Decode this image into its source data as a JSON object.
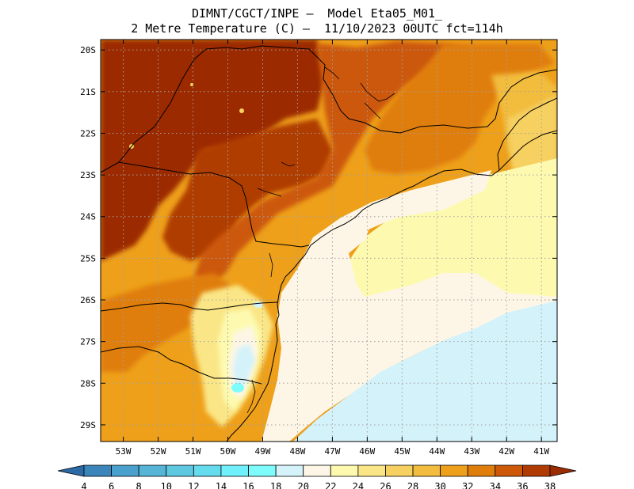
{
  "title": {
    "line1": "DIMNT/CGCT/INPE –  Model Eta05_M01_",
    "line2": "2 Metre Temperature (C) –  11/10/2023 00UTC fct=114h"
  },
  "axes": {
    "lat_labels": [
      "20S",
      "21S",
      "22S",
      "23S",
      "24S",
      "25S",
      "26S",
      "27S",
      "28S",
      "29S"
    ],
    "lon_labels": [
      "53W",
      "52W",
      "51W",
      "50W",
      "49W",
      "48W",
      "47W",
      "46W",
      "45W",
      "44W",
      "43W",
      "42W",
      "41W"
    ],
    "lat_range": [
      -29.4,
      -19.75
    ],
    "lon_range": [
      -53.65,
      -40.55
    ],
    "grid": true
  },
  "colorbar": {
    "labels": [
      "4",
      "6",
      "8",
      "10",
      "12",
      "14",
      "16",
      "18",
      "20",
      "22",
      "24",
      "26",
      "28",
      "30",
      "32",
      "34",
      "36",
      "38"
    ],
    "colors": [
      "#2c6aa6",
      "#3a86ba",
      "#4aa0cc",
      "#56b4d6",
      "#5ec8e0",
      "#65dcee",
      "#70f0fa",
      "#7efcfc",
      "#d4f2fa",
      "#fdf6e6",
      "#fdfab0",
      "#fae686",
      "#f6d060",
      "#f2bc3e",
      "#eea01a",
      "#e07e0c",
      "#cc5808",
      "#b03c04",
      "#9c2c04"
    ]
  },
  "regions": {
    "ocean_cool": "#d4f2fa",
    "ocean_mild": "#fdf6e6",
    "coast_warm": "#fdfab0",
    "hot": "#9c2c04",
    "boundary": "#000000",
    "gridline": "#a0a0a0"
  }
}
